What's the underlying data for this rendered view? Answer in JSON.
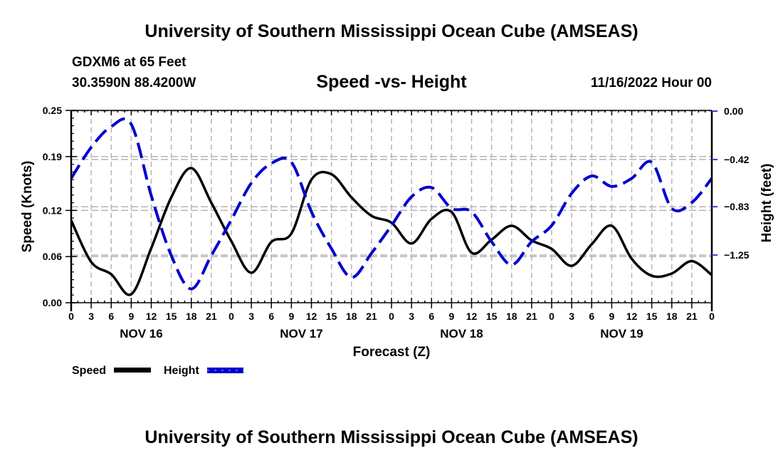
{
  "header": {
    "title": "University of Southern Mississippi Ocean Cube (AMSEAS)",
    "station": "GDXM6 at 65 Feet",
    "coords": "30.3590N  88.4200W",
    "subtitle": "Speed -vs- Height",
    "datetime": "11/16/2022 Hour 00"
  },
  "footer": {
    "title": "University of Southern Mississippi Ocean Cube (AMSEAS)"
  },
  "chart_data": {
    "type": "line",
    "title": "Speed -vs- Height",
    "xlabel": "Forecast (Z)",
    "ylabel": "Speed (Knots)",
    "y2label": "Height (feet)",
    "x_unit": "forecast hour",
    "xlim": [
      0,
      96
    ],
    "ylim": [
      0,
      0.25
    ],
    "y2lim": [
      -1.67,
      0
    ],
    "grid": true,
    "legend_position": "bottom-left",
    "x_ticks": [
      0,
      3,
      6,
      9,
      12,
      15,
      18,
      21,
      24,
      27,
      30,
      33,
      36,
      39,
      42,
      45,
      48,
      51,
      54,
      57,
      60,
      63,
      66,
      69,
      72,
      75,
      78,
      81,
      84,
      87,
      90,
      93,
      96
    ],
    "x_tick_labels": [
      "0",
      "3",
      "6",
      "9",
      "12",
      "15",
      "18",
      "21",
      "0",
      "3",
      "6",
      "9",
      "12",
      "15",
      "18",
      "21",
      "0",
      "3",
      "6",
      "9",
      "12",
      "15",
      "18",
      "21",
      "0",
      "3",
      "6",
      "9",
      "12",
      "15",
      "18",
      "21",
      "0"
    ],
    "day_labels": [
      {
        "label": "NOV 16",
        "center_hour": 10.5
      },
      {
        "label": "NOV 17",
        "center_hour": 34.5
      },
      {
        "label": "NOV 18",
        "center_hour": 58.5
      },
      {
        "label": "NOV 19",
        "center_hour": 82.5
      }
    ],
    "y_ticks": [
      0.0,
      0.06,
      0.12,
      0.19,
      0.25
    ],
    "y_tick_labels": [
      "0.00",
      "0.06",
      "0.12",
      "0.19",
      "0.25"
    ],
    "y2_ticks": [
      0.0,
      -0.42,
      -0.83,
      -1.25
    ],
    "y2_tick_labels": [
      "0.00",
      "−0.42",
      "−0.83",
      "−1.25"
    ],
    "x": [
      0,
      3,
      6,
      9,
      12,
      15,
      18,
      21,
      24,
      27,
      30,
      33,
      36,
      39,
      42,
      45,
      48,
      51,
      54,
      57,
      60,
      63,
      66,
      69,
      72,
      75,
      78,
      81,
      84,
      87,
      90,
      93,
      96
    ],
    "series": [
      {
        "name": "Speed",
        "axis": "left",
        "color": "#000000",
        "style": "solid",
        "values": [
          0.107,
          0.053,
          0.037,
          0.011,
          0.071,
          0.137,
          0.175,
          0.13,
          0.08,
          0.039,
          0.079,
          0.09,
          0.16,
          0.167,
          0.137,
          0.113,
          0.104,
          0.077,
          0.109,
          0.118,
          0.065,
          0.082,
          0.1,
          0.081,
          0.07,
          0.048,
          0.076,
          0.1,
          0.057,
          0.035,
          0.038,
          0.054,
          0.036
        ]
      },
      {
        "name": "Height",
        "axis": "right",
        "color": "#0000cc",
        "style": "dashed",
        "values": [
          -0.59,
          -0.32,
          -0.14,
          -0.12,
          -0.74,
          -1.26,
          -1.55,
          -1.26,
          -0.95,
          -0.63,
          -0.46,
          -0.45,
          -0.88,
          -1.2,
          -1.45,
          -1.24,
          -1.0,
          -0.75,
          -0.67,
          -0.85,
          -0.88,
          -1.14,
          -1.34,
          -1.14,
          -1.0,
          -0.72,
          -0.57,
          -0.66,
          -0.59,
          -0.45,
          -0.85,
          -0.8,
          -0.59
        ]
      }
    ],
    "legend": [
      {
        "label": "Speed",
        "color": "#000000",
        "style": "solid"
      },
      {
        "label": "Height",
        "color": "#0000cc",
        "style": "dashed"
      }
    ]
  }
}
